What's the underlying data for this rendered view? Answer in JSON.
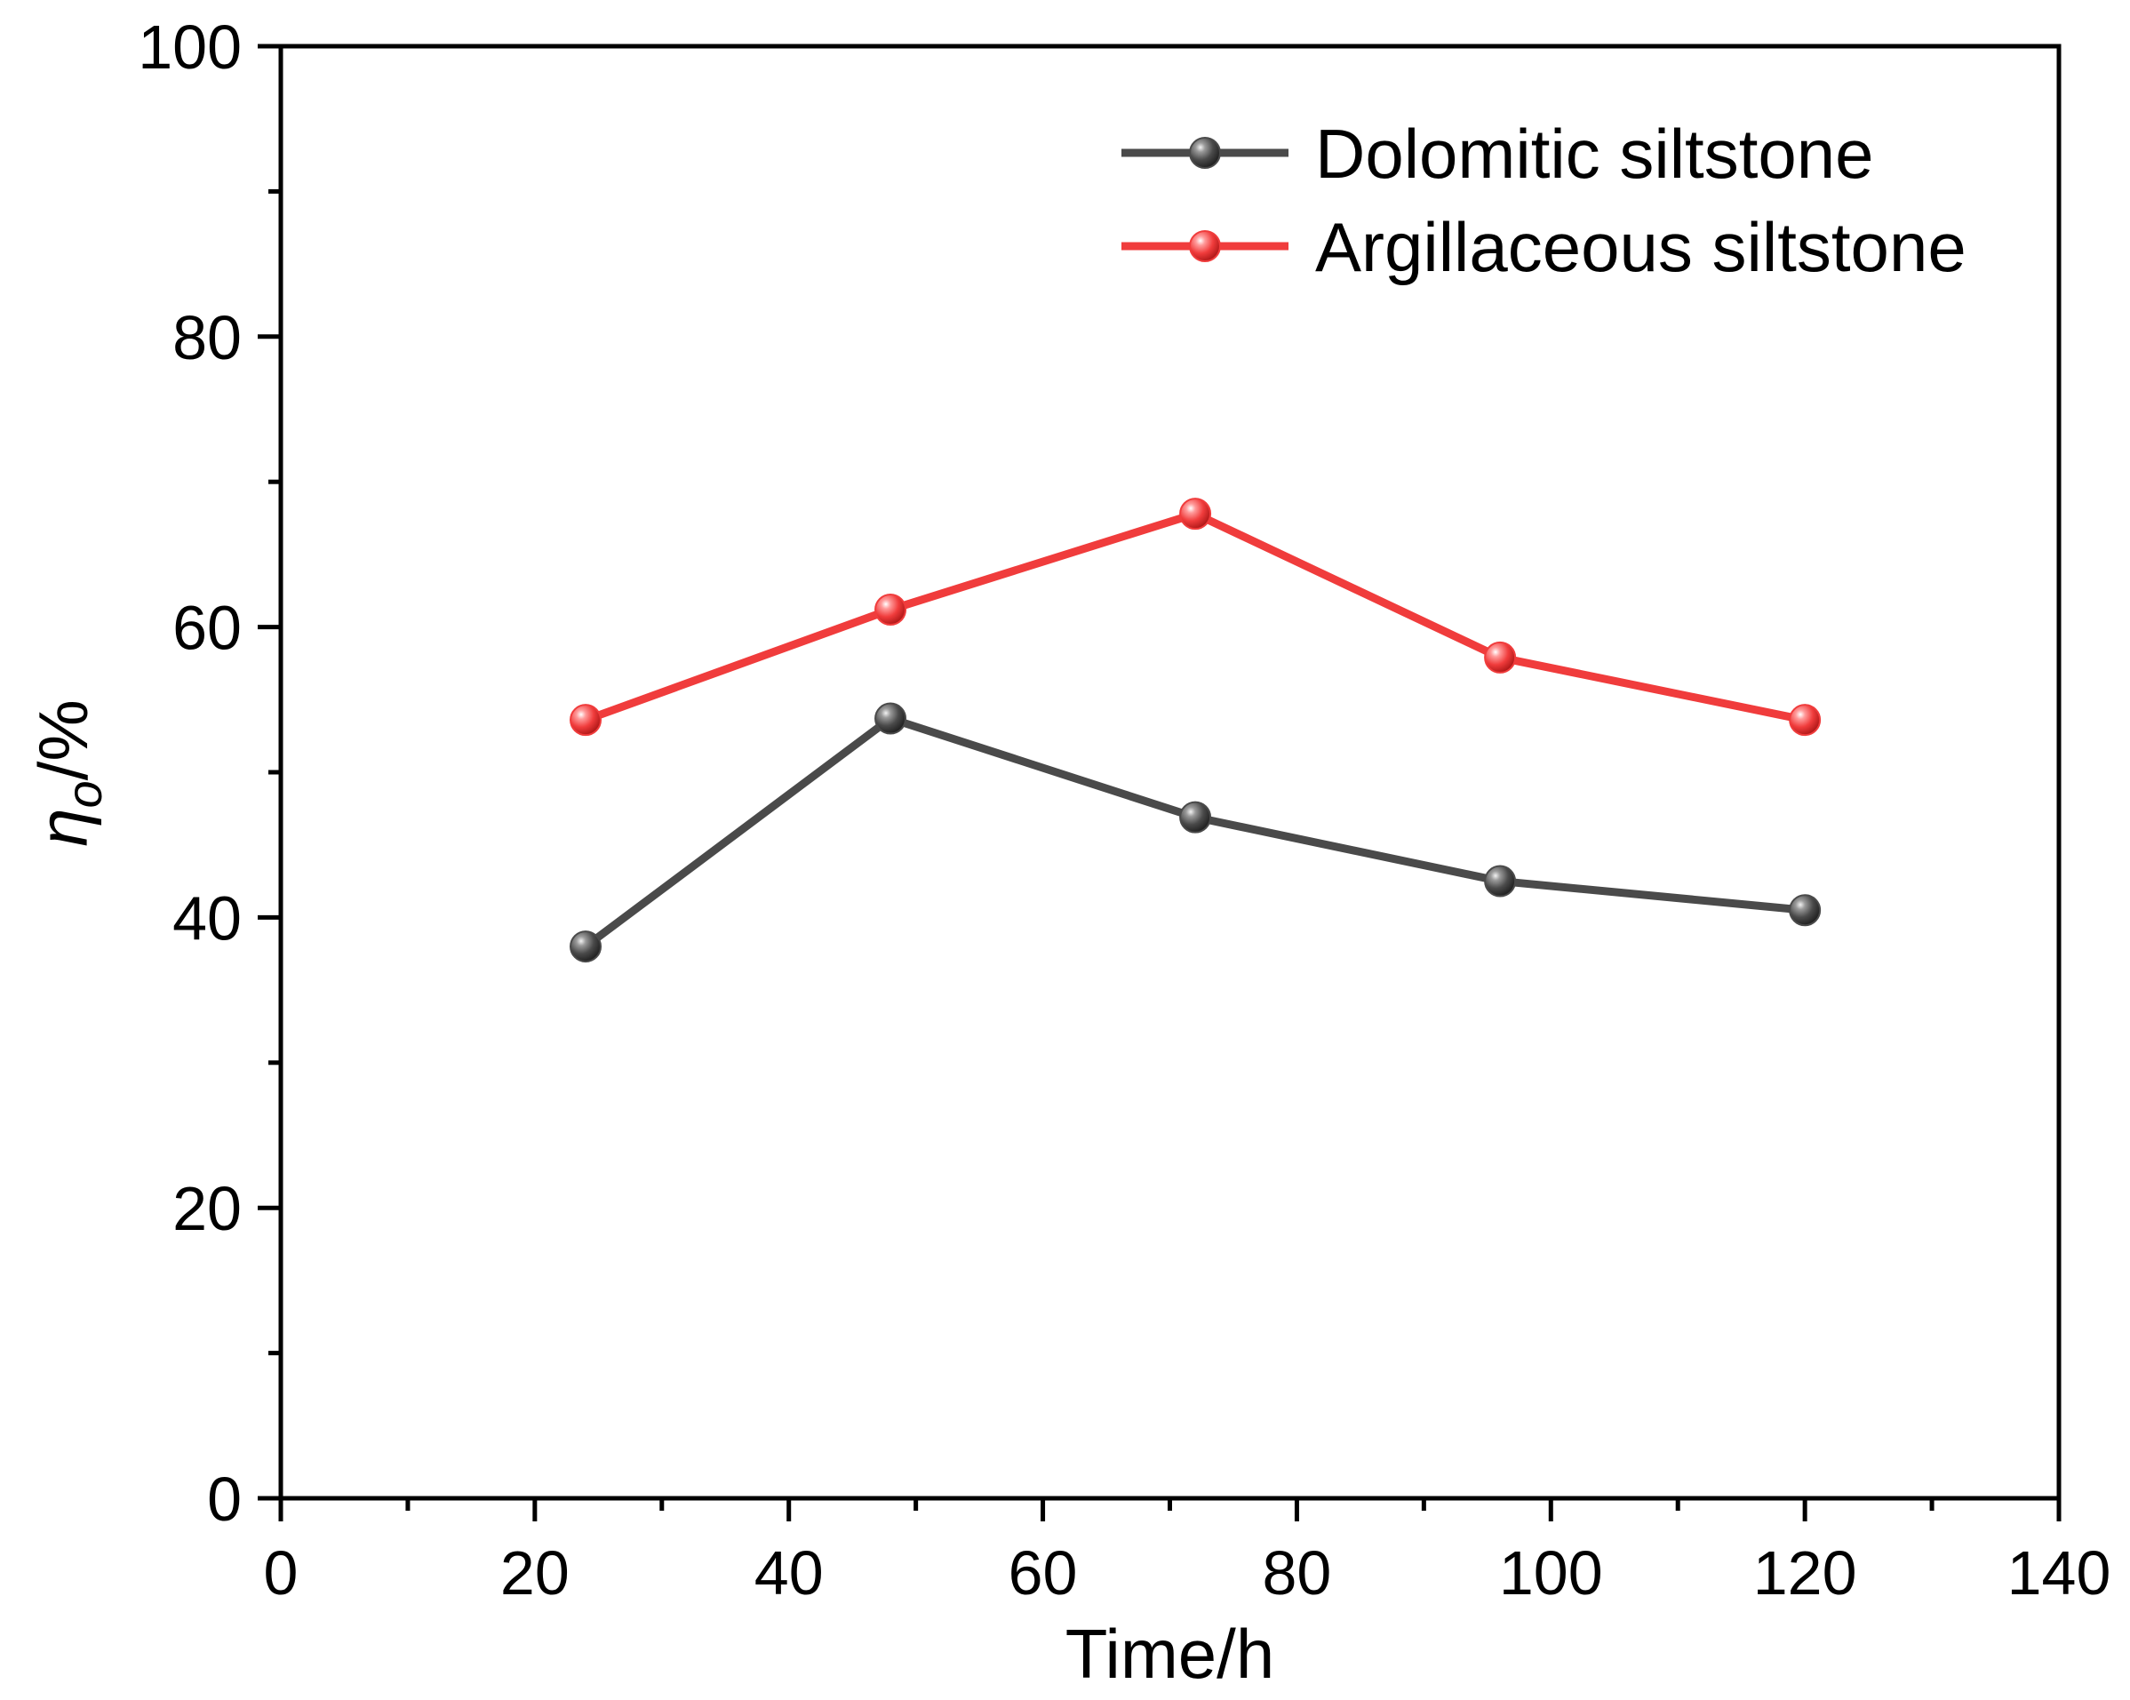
{
  "chart_data": {
    "type": "line",
    "title": "",
    "xlabel": "Time/h",
    "ylabel": {
      "symbol": "η",
      "subscript": "o",
      "unit": "/%"
    },
    "xlim": [
      0,
      140
    ],
    "ylim": [
      0,
      100
    ],
    "x_ticks": [
      0,
      20,
      40,
      60,
      80,
      100,
      120,
      140
    ],
    "y_ticks": [
      0,
      20,
      40,
      60,
      80,
      100
    ],
    "grid": false,
    "legend_position": "top-right",
    "series": [
      {
        "name": "Dolomitic siltstone",
        "color": "#4a4a4a",
        "x": [
          24,
          48,
          72,
          96,
          120
        ],
        "y": [
          38.0,
          53.7,
          46.9,
          42.5,
          40.5
        ]
      },
      {
        "name": "Argillaceous siltstone",
        "color": "#f03c3c",
        "x": [
          24,
          48,
          72,
          96,
          120
        ],
        "y": [
          53.6,
          61.2,
          67.8,
          57.9,
          53.6
        ]
      }
    ]
  }
}
